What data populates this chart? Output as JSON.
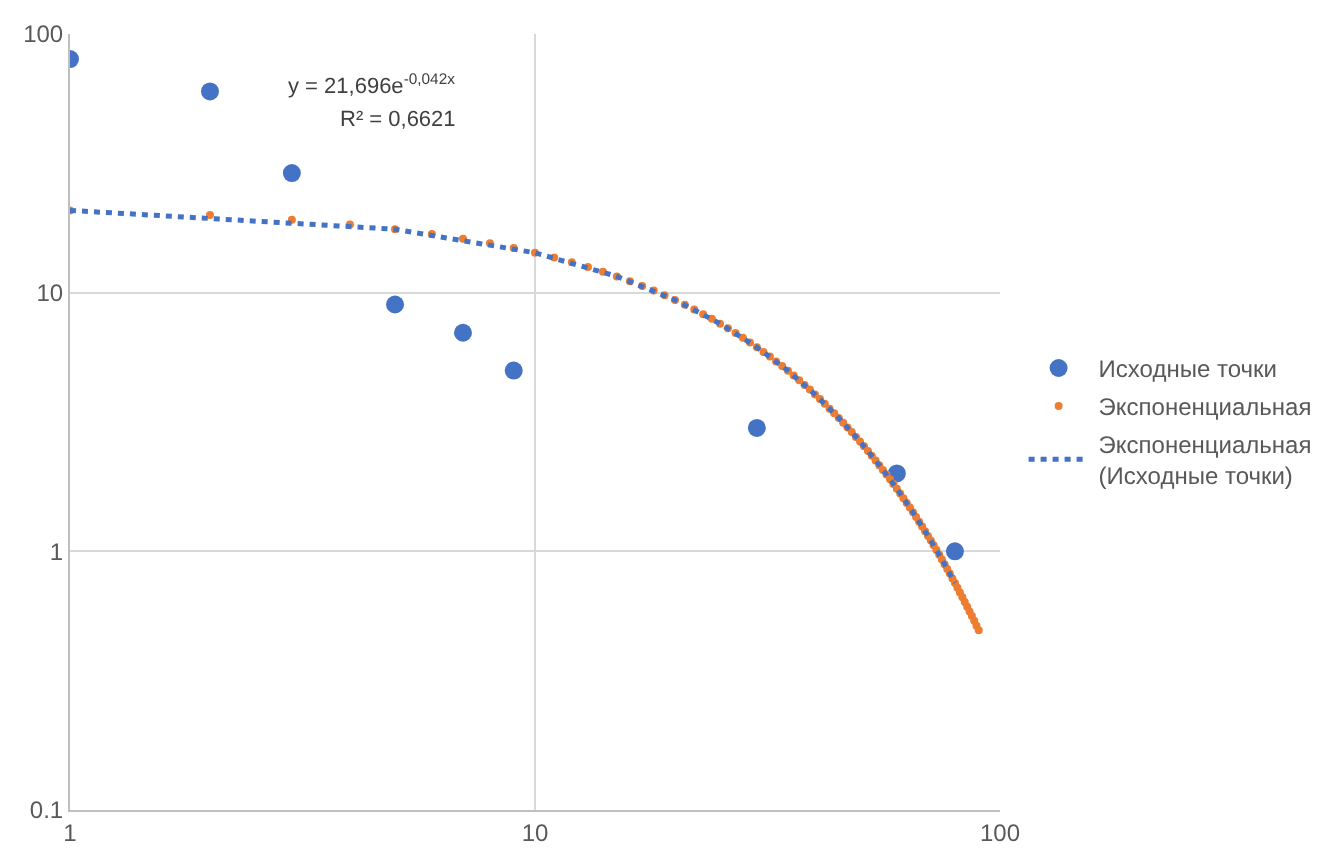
{
  "chart_data": {
    "type": "scatter",
    "log": "xy",
    "xlim": [
      1,
      100
    ],
    "ylim": [
      0.1,
      100
    ],
    "xticks": [
      1,
      10,
      100
    ],
    "yticks": [
      0.1,
      1,
      10,
      100
    ],
    "grid": true,
    "legend": "right",
    "annotations": [
      "y = 21,696e$^{-0,042x}$",
      "R² = 0,6621"
    ],
    "series": [
      {
        "name": "Исходные точки",
        "color": "#4472c4",
        "marker": "circle",
        "x": [
          1,
          2,
          3,
          5,
          7,
          9,
          30,
          60,
          80
        ],
        "values": [
          80,
          60,
          29,
          9,
          7,
          5,
          3,
          2,
          1
        ]
      },
      {
        "name": "Экспоненциальная",
        "color": "#ed7d31",
        "marker": "circle",
        "x": [
          1,
          2,
          3,
          4,
          5,
          6,
          7,
          8,
          9,
          10,
          11,
          12,
          13,
          14,
          15,
          16,
          17,
          18,
          19,
          20,
          21,
          22,
          23,
          24,
          25,
          26,
          27,
          28,
          29,
          30,
          31,
          32,
          33,
          34,
          35,
          36,
          37,
          38,
          39,
          40,
          41,
          42,
          43,
          44,
          45,
          46,
          47,
          48,
          49,
          50,
          51,
          52,
          53,
          54,
          55,
          56,
          57,
          58,
          59,
          60,
          61,
          62,
          63,
          64,
          65,
          66,
          67,
          68,
          69,
          70,
          71,
          72,
          73,
          74,
          75,
          76,
          77,
          78,
          79,
          80,
          81,
          82,
          83,
          84,
          85,
          86,
          87,
          88,
          89,
          90
        ],
        "values": [
          20.8,
          19.95,
          19.13,
          18.34,
          17.59,
          16.86,
          16.17,
          15.51,
          14.87,
          14.26,
          13.67,
          13.11,
          12.57,
          12.05,
          11.56,
          11.08,
          10.62,
          10.19,
          9.77,
          9.37,
          8.98,
          8.61,
          8.26,
          7.92,
          7.59,
          7.28,
          6.98,
          6.69,
          6.42,
          6.15,
          5.9,
          5.66,
          5.42,
          5.2,
          4.99,
          4.78,
          4.59,
          4.4,
          4.22,
          4.04,
          3.88,
          3.72,
          3.56,
          3.42,
          3.28,
          3.14,
          3.01,
          2.89,
          2.77,
          2.657,
          2.548,
          2.443,
          2.343,
          2.246,
          2.154,
          2.065,
          1.98,
          1.899,
          1.821,
          1.746,
          1.674,
          1.605,
          1.539,
          1.476,
          1.415,
          1.357,
          1.301,
          1.248,
          1.196,
          1.147,
          1.1,
          1.055,
          1.011,
          0.97,
          0.93,
          0.891,
          0.855,
          0.82,
          0.786,
          0.754,
          0.723,
          0.693,
          0.664,
          0.637,
          0.611,
          0.586,
          0.562,
          0.539,
          0.516,
          0.495
        ]
      },
      {
        "name": "Экспоненциальная (Исходные точки)",
        "type": "line",
        "line_style": "dotted",
        "marker": "none",
        "color": "#4472c4",
        "x": [
          1,
          5,
          10,
          15,
          20,
          25,
          30,
          35,
          40,
          45,
          50,
          55,
          60,
          65,
          70,
          75,
          80
        ],
        "values": [
          20.8,
          17.59,
          14.26,
          11.56,
          9.37,
          7.59,
          6.15,
          4.99,
          4.04,
          3.28,
          2.657,
          2.154,
          1.746,
          1.415,
          1.147,
          0.93,
          0.754
        ]
      }
    ]
  }
}
